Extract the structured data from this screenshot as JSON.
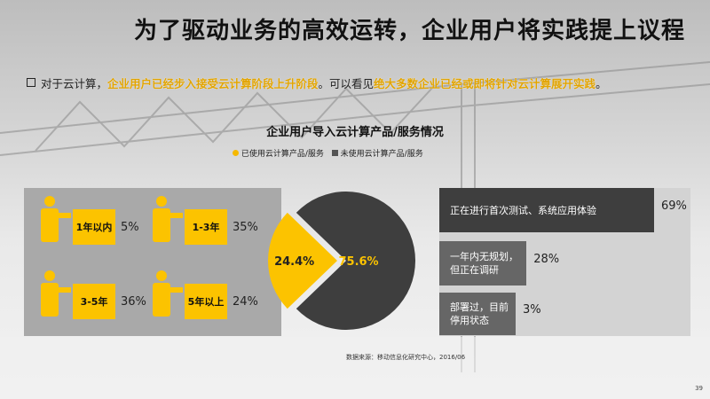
{
  "title": "为了驱动业务的高效运转，企业用户将实践提上议程",
  "subtitle": {
    "prefix": "对于云计算，",
    "highlight1": "企业用户已经步入接受云计算阶段上升阶段",
    "middle": "。可以看见",
    "highlight2": "绝大多数企业已经或即将针对云计算展开实践",
    "suffix": "。"
  },
  "colors": {
    "accent": "#fcc300",
    "dark": "#3e3e3e",
    "gray": "#666666"
  },
  "chart_data": [
    {
      "type": "pie",
      "title": "企业用户导入云计算产品/服务情况",
      "categories": [
        "已使用云计算产品/服务",
        "未使用云计算产品/服务"
      ],
      "values": [
        24.4,
        75.6
      ],
      "labels": [
        "24.4%",
        "75.6%"
      ],
      "legend": "top"
    },
    {
      "type": "table",
      "rows": [
        {
          "label": "1年以内",
          "value": 5,
          "text": "5%"
        },
        {
          "label": "1-3年",
          "value": 35,
          "text": "35%"
        },
        {
          "label": "3-5年",
          "value": 36,
          "text": "36%"
        },
        {
          "label": "5年以上",
          "value": 24,
          "text": "24%"
        }
      ]
    },
    {
      "type": "bar",
      "categories": [
        "正在进行首次测试、系统应用体验",
        "一年内无规划，但正在调研",
        "部署过，目前停用状态"
      ],
      "values": [
        69,
        28,
        3
      ],
      "labels": [
        "69%",
        "28%",
        "3%"
      ]
    }
  ],
  "source": "数据来源：移动信息化研究中心，2016/06",
  "page_number": "39"
}
